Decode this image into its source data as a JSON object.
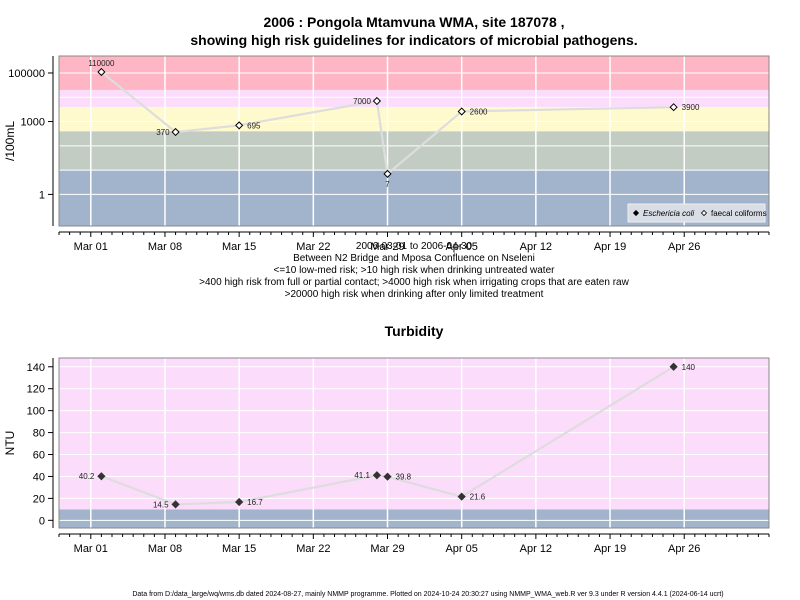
{
  "chart_data": [
    {
      "type": "line",
      "title_line1": "2006 : Pongola Mtamvuna WMA, site 187078 ,",
      "title_line2": "showing high risk guidelines for indicators of microbial pathogens.",
      "ylabel": "/100mL",
      "y_scale": "log",
      "yticks": [
        {
          "value": 1,
          "label": "1"
        },
        {
          "value": 1000,
          "label": "1000"
        },
        {
          "value": 100000,
          "label": "100000"
        }
      ],
      "x_tick_labels": [
        "Mar 01",
        "Mar 08",
        "Mar 15",
        "Mar 22",
        "Mar 29",
        "Apr 05",
        "Apr 12",
        "Apr 19",
        "Apr 26"
      ],
      "x_range": [
        "2006-02-26",
        "2006-05-04"
      ],
      "y_range": [
        0.05,
        500000
      ],
      "bands": [
        {
          "from": 0.05,
          "to": 10,
          "color": "#a2b4cc"
        },
        {
          "from": 10,
          "to": 400,
          "color": "#c3ccc3"
        },
        {
          "from": 400,
          "to": 4000,
          "color": "#fffacd"
        },
        {
          "from": 4000,
          "to": 20000,
          "color": "#fbdcfb"
        },
        {
          "from": 20000,
          "to": 500000,
          "color": "#ffb6c4"
        }
      ],
      "series": [
        {
          "name": "faecal coliforms",
          "marker": "open-diamond",
          "points": [
            {
              "x": "2006-03-02",
              "y": 110000,
              "label": "110000"
            },
            {
              "x": "2006-03-09",
              "y": 370,
              "label": "370"
            },
            {
              "x": "2006-03-15",
              "y": 695,
              "label": "695"
            },
            {
              "x": "2006-03-28",
              "y": 7000,
              "label": "7000"
            },
            {
              "x": "2006-03-29",
              "y": 7,
              "label": "7"
            },
            {
              "x": "2006-04-05",
              "y": 2600,
              "label": "2600"
            },
            {
              "x": "2006-04-25",
              "y": 3900,
              "label": "3900"
            }
          ]
        }
      ],
      "legend_entries": [
        "Eschericia coli",
        "faecal coliforms"
      ],
      "legend_position": "bottom-right",
      "subtitle_lines": [
        "2006-03-01 to 2006-04-30",
        "Between N2 Bridge and Mposa Confluence on Nseleni",
        "<=10 low-med risk; >10 high risk when drinking untreated water",
        ">400 high risk from full or partial contact; >4000 high risk when irrigating crops that are eaten raw",
        ">20000 high risk when drinking after only limited treatment"
      ]
    },
    {
      "type": "line",
      "title": "Turbidity",
      "ylabel": "NTU",
      "y_scale": "linear",
      "yticks": [
        0,
        20,
        40,
        60,
        80,
        100,
        120,
        140
      ],
      "x_tick_labels": [
        "Mar 01",
        "Mar 08",
        "Mar 15",
        "Mar 22",
        "Mar 29",
        "Apr 05",
        "Apr 12",
        "Apr 19",
        "Apr 26"
      ],
      "x_range": [
        "2006-02-26",
        "2006-05-04"
      ],
      "y_range": [
        -7,
        148
      ],
      "bands": [
        {
          "from": -7,
          "to": 10,
          "color": "#a2b4cc"
        },
        {
          "from": 10,
          "to": 148,
          "color": "#fbdcfb"
        }
      ],
      "series": [
        {
          "marker": "filled-diamond",
          "points": [
            {
              "x": "2006-03-02",
              "y": 40.2,
              "label": "40.2"
            },
            {
              "x": "2006-03-09",
              "y": 14.5,
              "label": "14.5"
            },
            {
              "x": "2006-03-15",
              "y": 16.7,
              "label": "16.7"
            },
            {
              "x": "2006-03-28",
              "y": 41.1,
              "label": "41.1"
            },
            {
              "x": "2006-03-29",
              "y": 39.8,
              "label": "39.8"
            },
            {
              "x": "2006-04-05",
              "y": 21.6,
              "label": "21.6"
            },
            {
              "x": "2006-04-25",
              "y": 140,
              "label": "140"
            }
          ]
        }
      ]
    }
  ],
  "footer": "Data from D:/data_large/wq/wms.db dated 2024-08-27, mainly NMMP programme. Plotted on 2024-10-24 20:30:27 using NMMP_WMA_web.R ver 9.3 under R version 4.4.1 (2024-06-14 ucrt)"
}
